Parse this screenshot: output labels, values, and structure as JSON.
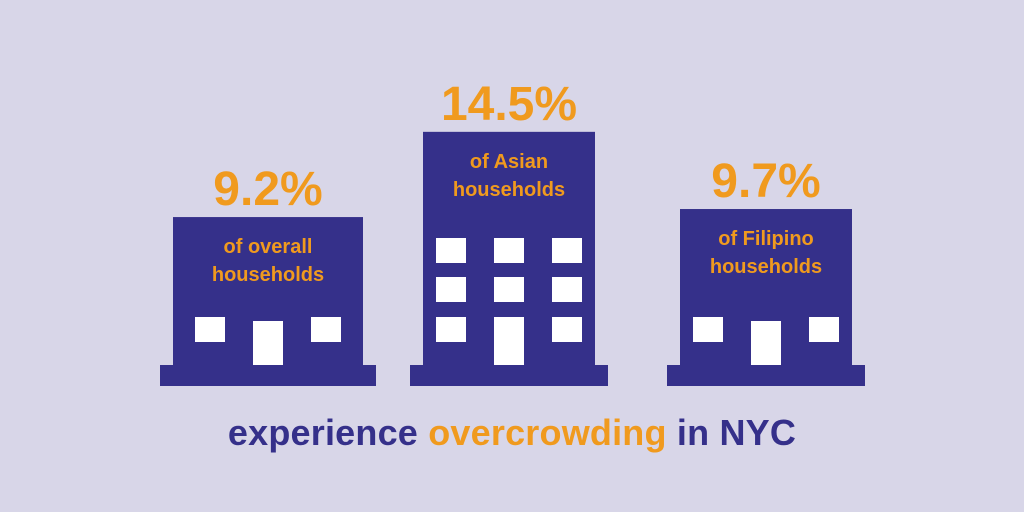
{
  "colors": {
    "background": "#d8d6e8",
    "building": "#35308a",
    "window": "#ffffff",
    "accent": "#f09a1e"
  },
  "chart_data": {
    "type": "bar",
    "unit": "%",
    "categories": [
      "of overall households",
      "of Asian households",
      "of Filipino households"
    ],
    "values": [
      9.2,
      14.5,
      9.7
    ],
    "value_labels": [
      "9.2%",
      "14.5%",
      "9.7%"
    ],
    "label_lines": [
      [
        "of overall",
        "households"
      ],
      [
        "of Asian",
        "households"
      ],
      [
        "of Filipino",
        "households"
      ]
    ]
  },
  "caption": {
    "part1": "experience",
    "part2": "overcrowding",
    "part3": "in NYC"
  }
}
